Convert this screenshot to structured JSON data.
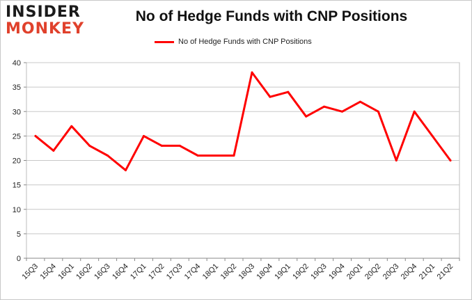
{
  "brand": {
    "logo_top": "INSIDER",
    "logo_bottom": "MONKEY"
  },
  "chart_data": {
    "type": "line",
    "title": "No of Hedge Funds with CNP Positions",
    "xlabel": "",
    "ylabel": "",
    "categories": [
      "15Q3",
      "15Q4",
      "16Q1",
      "16Q2",
      "16Q3",
      "16Q4",
      "17Q1",
      "17Q2",
      "17Q3",
      "17Q4",
      "18Q1",
      "18Q2",
      "18Q3",
      "18Q4",
      "19Q1",
      "19Q2",
      "19Q3",
      "19Q4",
      "20Q1",
      "20Q2",
      "20Q3",
      "20Q4",
      "21Q1",
      "21Q2"
    ],
    "series": [
      {
        "name": "No of Hedge Funds with CNP Positions",
        "color": "#ff0000",
        "values": [
          25,
          22,
          27,
          23,
          21,
          18,
          25,
          23,
          23,
          21,
          21,
          21,
          38,
          33,
          34,
          29,
          31,
          30,
          32,
          30,
          20,
          30,
          25,
          20
        ]
      }
    ],
    "ylim": [
      0,
      40
    ],
    "yticks": [
      0,
      5,
      10,
      15,
      20,
      25,
      30,
      35,
      40
    ],
    "grid": true,
    "legend_position": "top"
  }
}
